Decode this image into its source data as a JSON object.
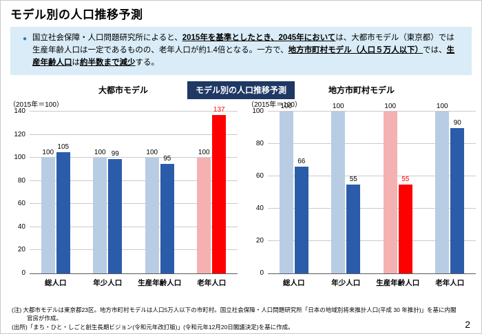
{
  "page": {
    "title": "モデル別の人口推移予測",
    "number": "2"
  },
  "info_box": {
    "bullet": "●",
    "segments": [
      {
        "text": "国立社会保障・人口問題研究所によると、",
        "bold": false,
        "underline": false
      },
      {
        "text": "2015年を基準としたとき、2045年において",
        "bold": true,
        "underline": true
      },
      {
        "text": "は、大都市モデル（東京都）では生産年齢人口は一定であるものの、老年人口が約1.4倍となる。一方で、",
        "bold": false,
        "underline": false
      },
      {
        "text": "地方市町村モデル（人口５万人以下）",
        "bold": true,
        "underline": true
      },
      {
        "text": "では、",
        "bold": false,
        "underline": false
      },
      {
        "text": "生産年齢人口",
        "bold": true,
        "underline": true
      },
      {
        "text": "は",
        "bold": false,
        "underline": false
      },
      {
        "text": "約半数まで減少",
        "bold": true,
        "underline": true
      },
      {
        "text": "する。",
        "bold": false,
        "underline": false
      }
    ]
  },
  "badge": {
    "label": "モデル別の人口推移予測",
    "background": "#1F3864"
  },
  "colors": {
    "light_blue_2015": "#B8CCE4",
    "dark_blue_2045": "#2B5CA9",
    "light_pink_2015": "#F5B1B1",
    "red_2045": "#FF0000",
    "info_box_bg": "#D9ECF7",
    "badge_bg": "#1F3864"
  },
  "chart_data": [
    {
      "type": "bar",
      "title": "大都市モデル",
      "axis_note": "（2015年＝100）",
      "xlabel": "",
      "ylabel": "",
      "ylim": [
        0,
        140
      ],
      "yticks": [
        0,
        20,
        40,
        60,
        80,
        100,
        120,
        140
      ],
      "grid": true,
      "legend": "none",
      "categories": [
        "総人口",
        "年少人口",
        "生産年齢人口",
        "老年人口"
      ],
      "series": [
        {
          "name": "2015",
          "values": [
            100,
            100,
            100,
            100
          ],
          "colors": [
            "#B8CCE4",
            "#B8CCE4",
            "#B8CCE4",
            "#F5B1B1"
          ],
          "label_colors": [
            "#000000",
            "#000000",
            "#000000",
            "#000000"
          ]
        },
        {
          "name": "2045",
          "values": [
            105,
            99,
            95,
            137
          ],
          "colors": [
            "#2B5CA9",
            "#2B5CA9",
            "#2B5CA9",
            "#FF0000"
          ],
          "label_colors": [
            "#000000",
            "#000000",
            "#000000",
            "#FF0000"
          ]
        }
      ]
    },
    {
      "type": "bar",
      "title": "地方市町村モデル",
      "axis_note": "（2015年＝100）",
      "xlabel": "",
      "ylabel": "",
      "ylim": [
        0,
        100
      ],
      "yticks": [
        0,
        20,
        40,
        60,
        80,
        100
      ],
      "grid": true,
      "legend": "none",
      "categories": [
        "総人口",
        "年少人口",
        "生産年齢人口",
        "老年人口"
      ],
      "series": [
        {
          "name": "2015",
          "values": [
            100,
            100,
            100,
            100
          ],
          "colors": [
            "#B8CCE4",
            "#B8CCE4",
            "#F5B1B1",
            "#B8CCE4"
          ],
          "label_colors": [
            "#000000",
            "#000000",
            "#000000",
            "#000000"
          ]
        },
        {
          "name": "2045",
          "values": [
            66,
            55,
            55,
            90
          ],
          "colors": [
            "#2B5CA9",
            "#2B5CA9",
            "#FF0000",
            "#2B5CA9"
          ],
          "label_colors": [
            "#000000",
            "#000000",
            "#FF0000",
            "#000000"
          ]
        }
      ]
    }
  ],
  "notes": {
    "note1": "(注) 大都市モデルは東京都23区。地方市町村モデルは人口5万人以下の市町村。国立社会保障・人口問題研究所「日本の地域別将来推計人口(平成 30 年推計)」を基に内閣官房が作成。",
    "note2": "(出所)「まち・ひと・しごと創生長期ビジョン(令和元年改訂版)」(令和元年12月20日閣議決定)を基に作成。"
  }
}
